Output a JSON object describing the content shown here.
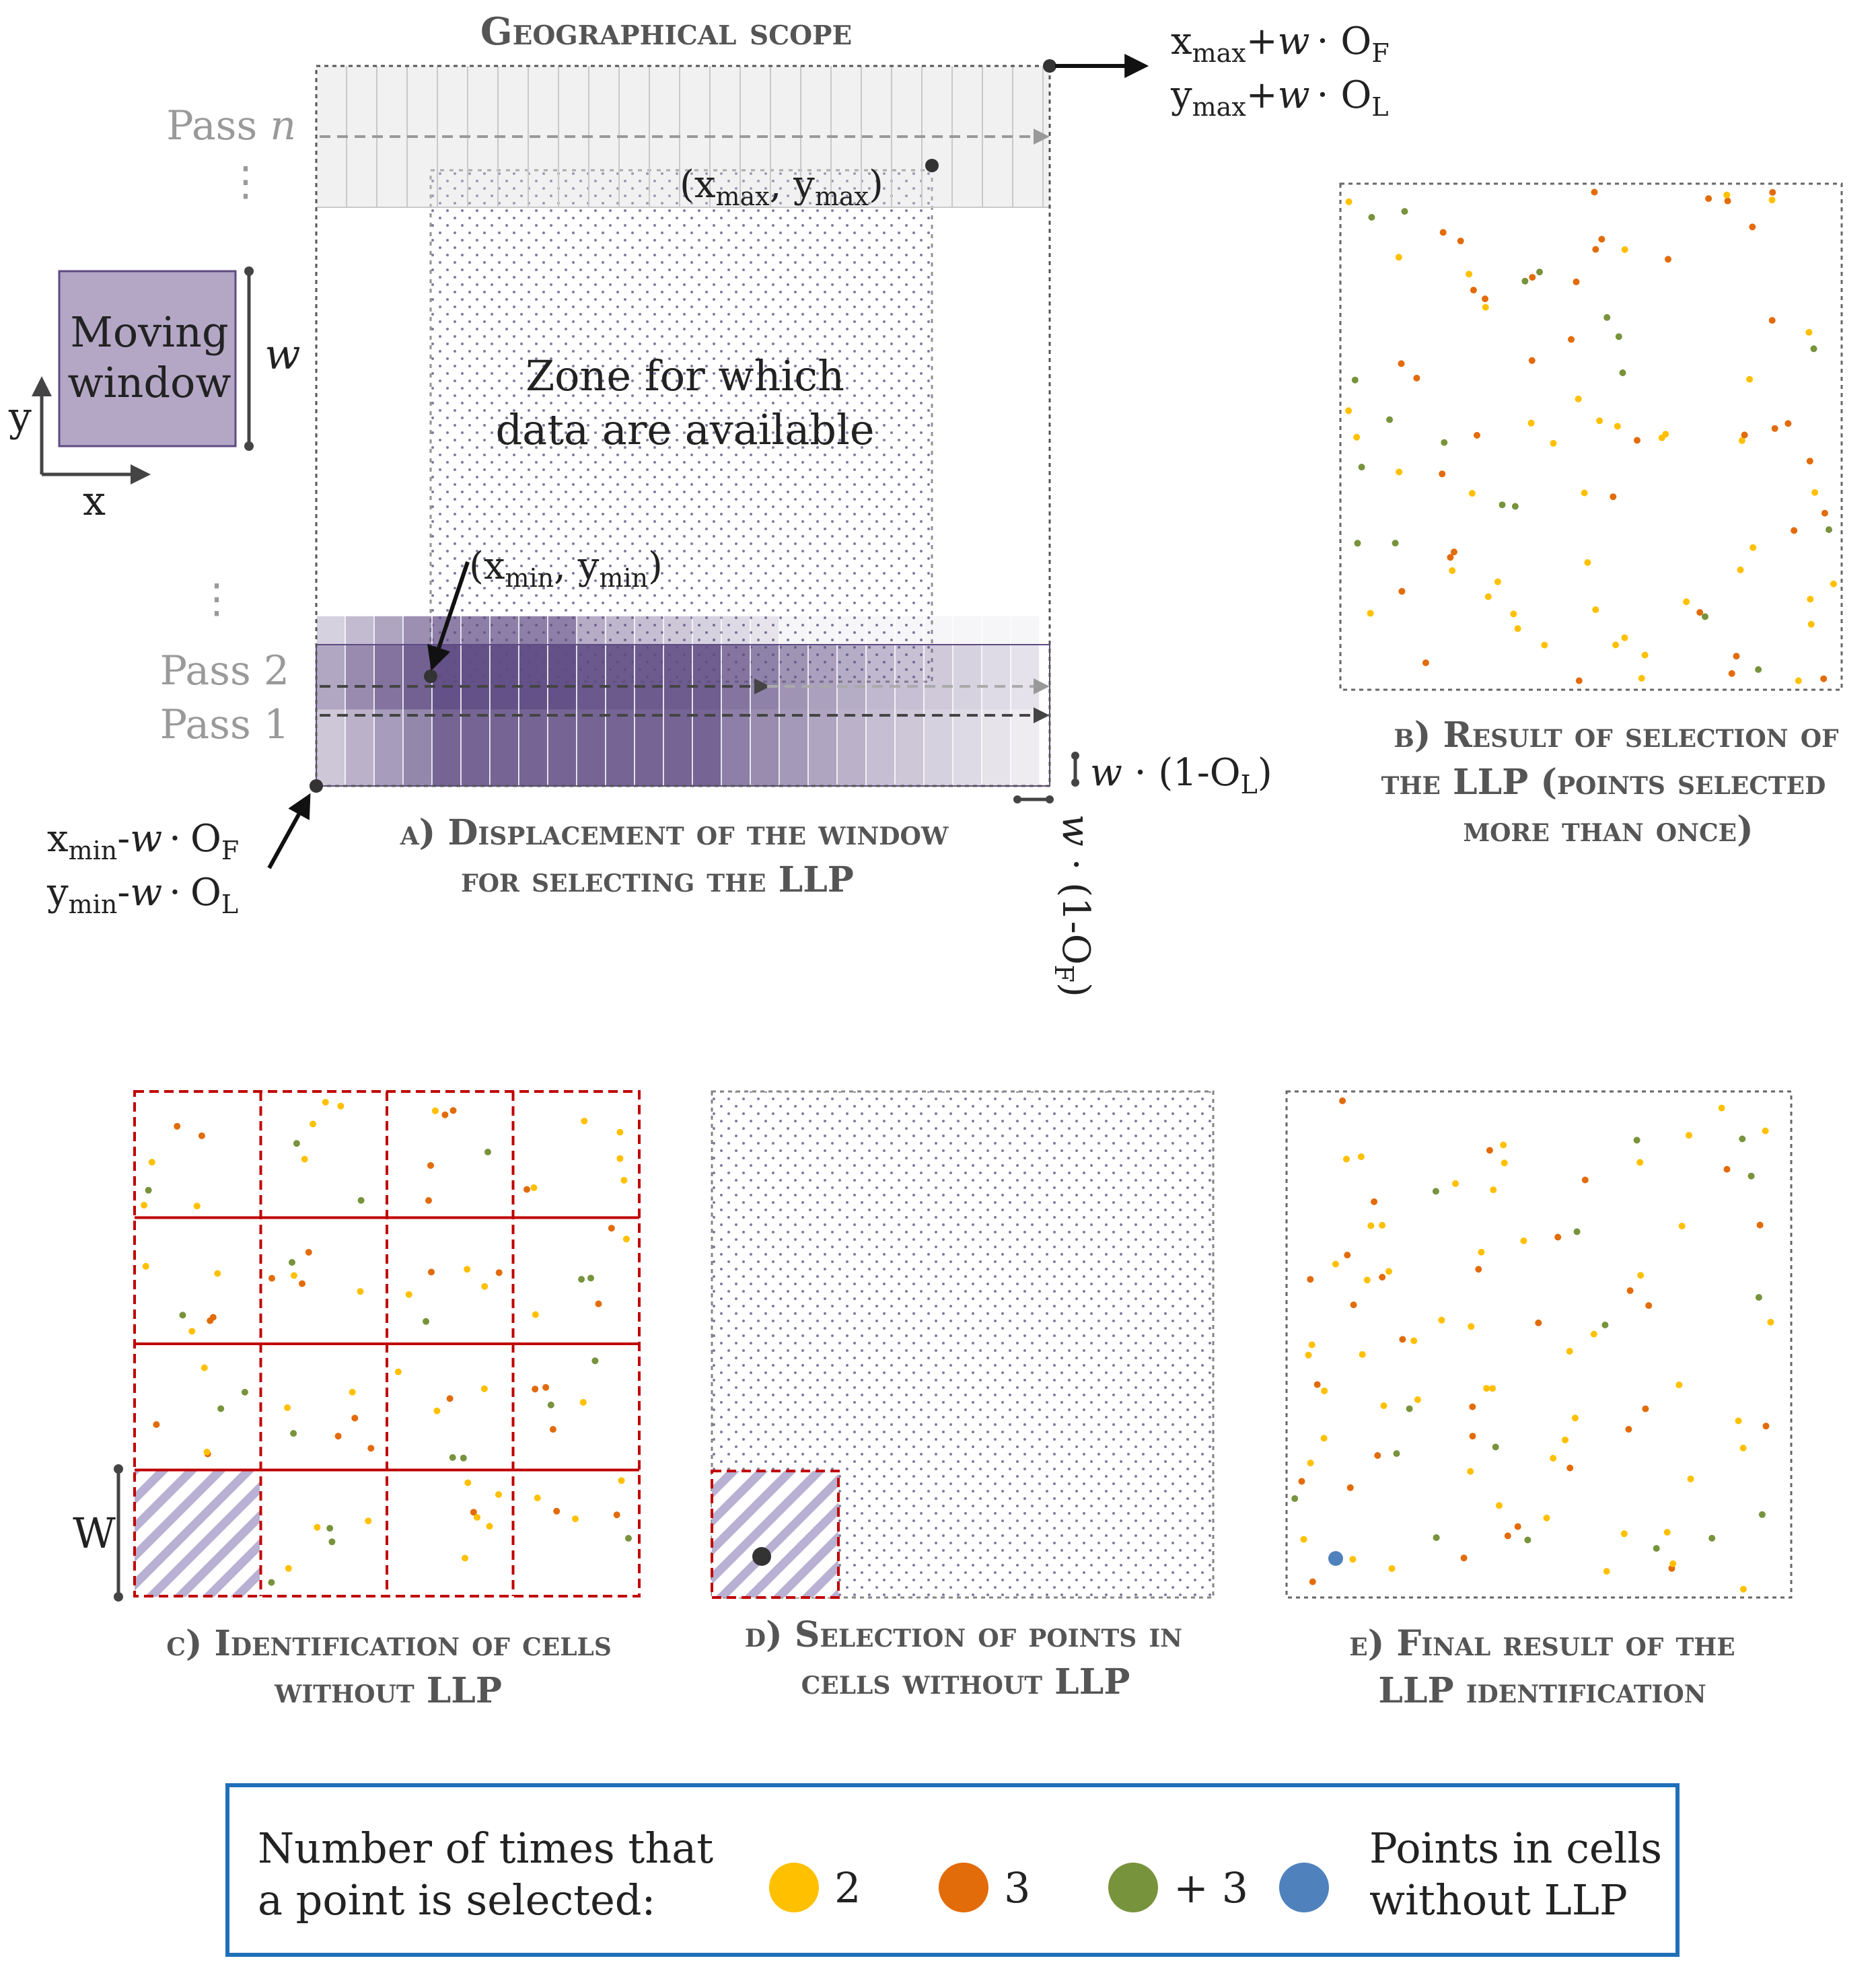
{
  "colors": {
    "two": "#FFC000",
    "three": "#E26B0A",
    "more_than_three": "#77933C",
    "no_llp": "#4F81BD",
    "window_purple": "#5E4A82",
    "moving_window_fill": "#B4A7C6",
    "grid_red": "#C00000",
    "legend_border": "#1F6FB8"
  },
  "panel_a": {
    "title": "Geographical scope",
    "pass_n": "Pass ",
    "pass_n_var": "n",
    "pass_2": "Pass 2",
    "pass_1": "Pass 1",
    "dots_symbol": "⋮",
    "moving_window_label": [
      "Moving",
      "window"
    ],
    "w_symbol": "w",
    "axis_x": "x",
    "axis_y": "y",
    "zone_text": [
      "Zone for which",
      "data are available"
    ],
    "corner_top_right": {
      "x": "x",
      "y": "y",
      "sub": "max",
      "op": "+",
      "var": "w",
      "dot": "·",
      "O_F": "O",
      "F": "F",
      "O_L": "O",
      "L": "L"
    },
    "corner_bottom_left": {
      "x": "x",
      "y": "y",
      "sub": "min",
      "op": "-",
      "var": "w",
      "dot": "·",
      "O_F": "O",
      "F": "F",
      "O_L": "O",
      "L": "L"
    },
    "xmax_ymax": {
      "open": "(x",
      "sub_x": "max",
      "mid": ", y",
      "sub_y": "max",
      "close": ")"
    },
    "xmin_ymin": {
      "open": "(x",
      "sub_x": "min",
      "mid": ", y",
      "sub_y": "min",
      "close": ")"
    },
    "overlap_lateral": {
      "var": "w",
      "dot": " · ",
      "pre": "(1-O",
      "sub": "L",
      "post": ")"
    },
    "overlap_forward": {
      "var": "w",
      "dot": " · ",
      "pre": "(1-O",
      "sub": "F",
      "post": ")"
    },
    "caption": [
      "a) Displacement of the  window",
      "for selecting the LLP"
    ]
  },
  "panel_b": {
    "caption": [
      "b) Result of selection of",
      "the LLP (points selected",
      "more than once)"
    ]
  },
  "panel_c": {
    "W_label": "W",
    "caption": [
      "c) Identification of cells",
      "without LLP"
    ]
  },
  "panel_d": {
    "caption": [
      "d) Selection of points in",
      "cells without LLP"
    ]
  },
  "panel_e": {
    "caption": [
      "e) Final result of the",
      "LLP identification"
    ]
  },
  "legend": {
    "lead": [
      "Number of times that",
      "a point is selected:"
    ],
    "items": [
      {
        "color_key": "two",
        "label": "2"
      },
      {
        "color_key": "three",
        "label": "3"
      },
      {
        "color_key": "more_than_three",
        "label": "+ 3"
      }
    ],
    "no_llp_label": [
      "Points in cells",
      "without LLP"
    ]
  }
}
